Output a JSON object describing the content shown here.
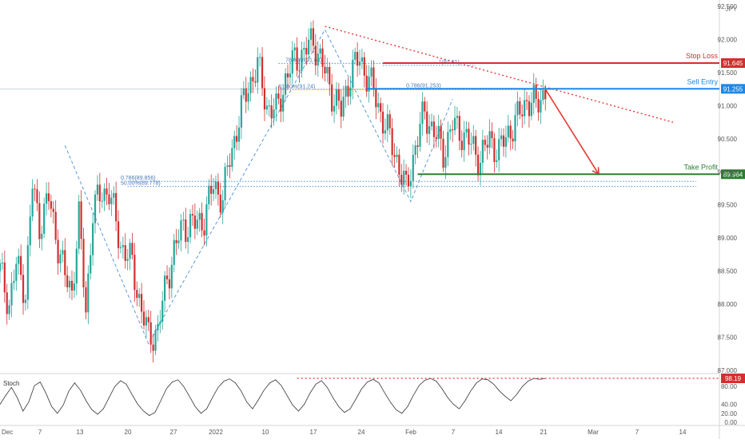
{
  "chart_data": {
    "type": "candlestick",
    "currency_label": "JPY",
    "price_axis": {
      "range": [
        86.95,
        92.55
      ],
      "ticks": [
        "92.500",
        "92.000",
        "91.500",
        "91.000",
        "90.500",
        "90.000",
        "89.500",
        "89.000",
        "88.500",
        "88.000",
        "87.500",
        "87.000"
      ]
    },
    "time_axis": {
      "labels": [
        "Dec",
        "7",
        "13",
        "20",
        "27",
        "2022",
        "10",
        "17",
        "24",
        "Feb",
        "7",
        "14",
        "21",
        "Mar",
        "7",
        "14"
      ]
    },
    "levels": {
      "stop_loss": {
        "label": "Stop Loss",
        "value": "91.645",
        "price": 91.645,
        "color": "#d32f2f"
      },
      "sell_entry": {
        "label": "Sell Entry",
        "value": "91.255",
        "price": 91.255,
        "color": "#1e88e5"
      },
      "take_profit": {
        "label": "Take Profit",
        "value": "89.964",
        "price": 89.964,
        "color": "#2e7d32"
      }
    },
    "fib_annotations": [
      {
        "text": "78.60%(91.64)",
        "price": 91.64
      },
      {
        "text": "1(91.61)",
        "price": 91.61
      },
      {
        "text": "0.786(91.253)",
        "price": 91.253
      },
      {
        "text": "61.80%(91.24)",
        "price": 91.24
      },
      {
        "text": "0.786(89.856)",
        "price": 89.856
      },
      {
        "text": "50.00%(89.778)",
        "price": 89.778
      }
    ],
    "price_path": [
      [
        0,
        88.5
      ],
      [
        4,
        88.0
      ],
      [
        7,
        88.6
      ],
      [
        11,
        88.2
      ],
      [
        14,
        89.8
      ],
      [
        17,
        89.2
      ],
      [
        21,
        89.6
      ],
      [
        25,
        88.9
      ],
      [
        28,
        88.4
      ],
      [
        31,
        88.2
      ],
      [
        34,
        89.3
      ],
      [
        37,
        87.9
      ],
      [
        40,
        89.4
      ],
      [
        44,
        89.7
      ],
      [
        47,
        89.7
      ],
      [
        52,
        88.9
      ],
      [
        57,
        88.6
      ],
      [
        61,
        87.9
      ],
      [
        64,
        87.5
      ],
      [
        68,
        87.6
      ],
      [
        72,
        88.4
      ],
      [
        75,
        88.8
      ],
      [
        79,
        89.2
      ],
      [
        84,
        89.2
      ],
      [
        88,
        89.3
      ],
      [
        92,
        89.8
      ],
      [
        96,
        89.6
      ],
      [
        99,
        90.2
      ],
      [
        103,
        90.8
      ],
      [
        107,
        91.3
      ],
      [
        111,
        91.6
      ],
      [
        115,
        91.0
      ],
      [
        119,
        90.9
      ],
      [
        123,
        91.4
      ],
      [
        127,
        91.7
      ],
      [
        131,
        91.8
      ],
      [
        135,
        92.0
      ],
      [
        139,
        91.6
      ],
      [
        143,
        91.2
      ],
      [
        147,
        90.9
      ],
      [
        151,
        91.5
      ],
      [
        155,
        91.7
      ],
      [
        159,
        91.4
      ],
      [
        163,
        91.0
      ],
      [
        167,
        90.6
      ],
      [
        171,
        90.2
      ],
      [
        175,
        89.7
      ],
      [
        179,
        90.4
      ],
      [
        183,
        90.9
      ],
      [
        187,
        90.6
      ],
      [
        191,
        90.3
      ],
      [
        195,
        90.7
      ],
      [
        199,
        90.6
      ],
      [
        203,
        90.4
      ],
      [
        207,
        90.2
      ],
      [
        211,
        90.5
      ],
      [
        215,
        90.3
      ],
      [
        219,
        90.6
      ],
      [
        223,
        90.8
      ],
      [
        227,
        91.1
      ],
      [
        231,
        91.0
      ],
      [
        235,
        91.25
      ]
    ],
    "projection": {
      "from": [
        235,
        91.25
      ],
      "to": [
        258,
        89.964
      ]
    },
    "trendline": {
      "from": [
        140,
        92.2
      ],
      "to": [
        290,
        90.75
      ]
    },
    "zigzag": [
      [
        28,
        90.4
      ],
      [
        64,
        87.4
      ],
      [
        140,
        92.15
      ],
      [
        177,
        89.55
      ],
      [
        195,
        91.1
      ]
    ],
    "stochastic": {
      "label": "Stoch",
      "range": [
        0,
        100
      ],
      "ticks": [
        "80.00",
        "40.00",
        "20.00",
        "0.00"
      ],
      "last_value": "98.19",
      "last": 98.19,
      "overbought_line": 98.19,
      "values": [
        40,
        60,
        78,
        55,
        25,
        45,
        82,
        90,
        65,
        35,
        20,
        38,
        70,
        88,
        72,
        48,
        28,
        18,
        30,
        55,
        80,
        93,
        85,
        62,
        40,
        25,
        15,
        22,
        48,
        75,
        90,
        95,
        80,
        58,
        35,
        20,
        30,
        55,
        78,
        92,
        97,
        88,
        70,
        45,
        30,
        50,
        72,
        88,
        95,
        82,
        60,
        38,
        25,
        40,
        65,
        85,
        93,
        78,
        55,
        35,
        22,
        30,
        52,
        75,
        90,
        96,
        88,
        66,
        45,
        28,
        20,
        35,
        60,
        82,
        94,
        98,
        92,
        75,
        55,
        40,
        30,
        48,
        70,
        88,
        97,
        95,
        85,
        70,
        58,
        48,
        62,
        80,
        92,
        98,
        96,
        98
      ]
    }
  }
}
